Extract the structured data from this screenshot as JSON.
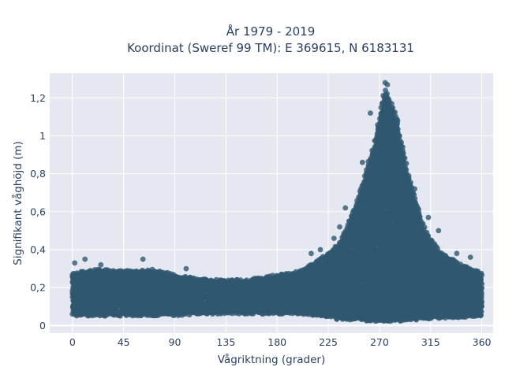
{
  "chart_data": {
    "type": "scatter",
    "title_line1": "År 1979 - 2019",
    "title_line2": "Koordinat (Sweref 99 TM): E 369615, N 6183131",
    "xlabel": "Vågriktning (grader)",
    "ylabel": "Signifikant våghöjd (m)",
    "xlim": [
      -20,
      370
    ],
    "ylim": [
      -0.04,
      1.33
    ],
    "xticks": [
      0,
      45,
      90,
      135,
      180,
      225,
      270,
      315,
      360
    ],
    "xtick_labels": [
      "0",
      "45",
      "90",
      "135",
      "180",
      "225",
      "270",
      "315",
      "360"
    ],
    "yticks": [
      0,
      0.2,
      0.4,
      0.6,
      0.8,
      1,
      1.2
    ],
    "ytick_labels": [
      "0",
      "0,2",
      "0,4",
      "0,6",
      "0,8",
      "1",
      "1,2"
    ],
    "grid": true,
    "marker_color": "#2f5770",
    "plot_background": "#e5e8f0",
    "density_envelope": {
      "direction_deg": [
        0,
        20,
        45,
        70,
        90,
        110,
        135,
        160,
        180,
        200,
        220,
        235,
        250,
        265,
        275,
        285,
        295,
        310,
        325,
        340,
        360
      ],
      "upper_height_m": [
        0.28,
        0.3,
        0.29,
        0.3,
        0.27,
        0.25,
        0.24,
        0.25,
        0.27,
        0.29,
        0.36,
        0.44,
        0.65,
        0.95,
        1.25,
        1.1,
        0.8,
        0.5,
        0.38,
        0.33,
        0.28
      ],
      "lower_height_m": [
        0.05,
        0.05,
        0.05,
        0.05,
        0.05,
        0.06,
        0.06,
        0.06,
        0.06,
        0.06,
        0.05,
        0.03,
        0.03,
        0.02,
        0.02,
        0.02,
        0.03,
        0.03,
        0.04,
        0.04,
        0.05
      ]
    },
    "outliers": [
      {
        "x": 275,
        "y": 1.28
      },
      {
        "x": 277,
        "y": 1.27
      },
      {
        "x": 262,
        "y": 1.12
      },
      {
        "x": 286,
        "y": 1.08
      },
      {
        "x": 301,
        "y": 0.72
      },
      {
        "x": 255,
        "y": 0.86
      },
      {
        "x": 235,
        "y": 0.52
      },
      {
        "x": 240,
        "y": 0.62
      },
      {
        "x": 313,
        "y": 0.57
      },
      {
        "x": 322,
        "y": 0.5
      },
      {
        "x": 338,
        "y": 0.38
      },
      {
        "x": 230,
        "y": 0.46
      },
      {
        "x": 11,
        "y": 0.35
      },
      {
        "x": 62,
        "y": 0.35
      },
      {
        "x": 2,
        "y": 0.33
      },
      {
        "x": 100,
        "y": 0.3
      },
      {
        "x": 218,
        "y": 0.4
      },
      {
        "x": 350,
        "y": 0.36
      },
      {
        "x": 25,
        "y": 0.32
      },
      {
        "x": 210,
        "y": 0.38
      }
    ]
  }
}
